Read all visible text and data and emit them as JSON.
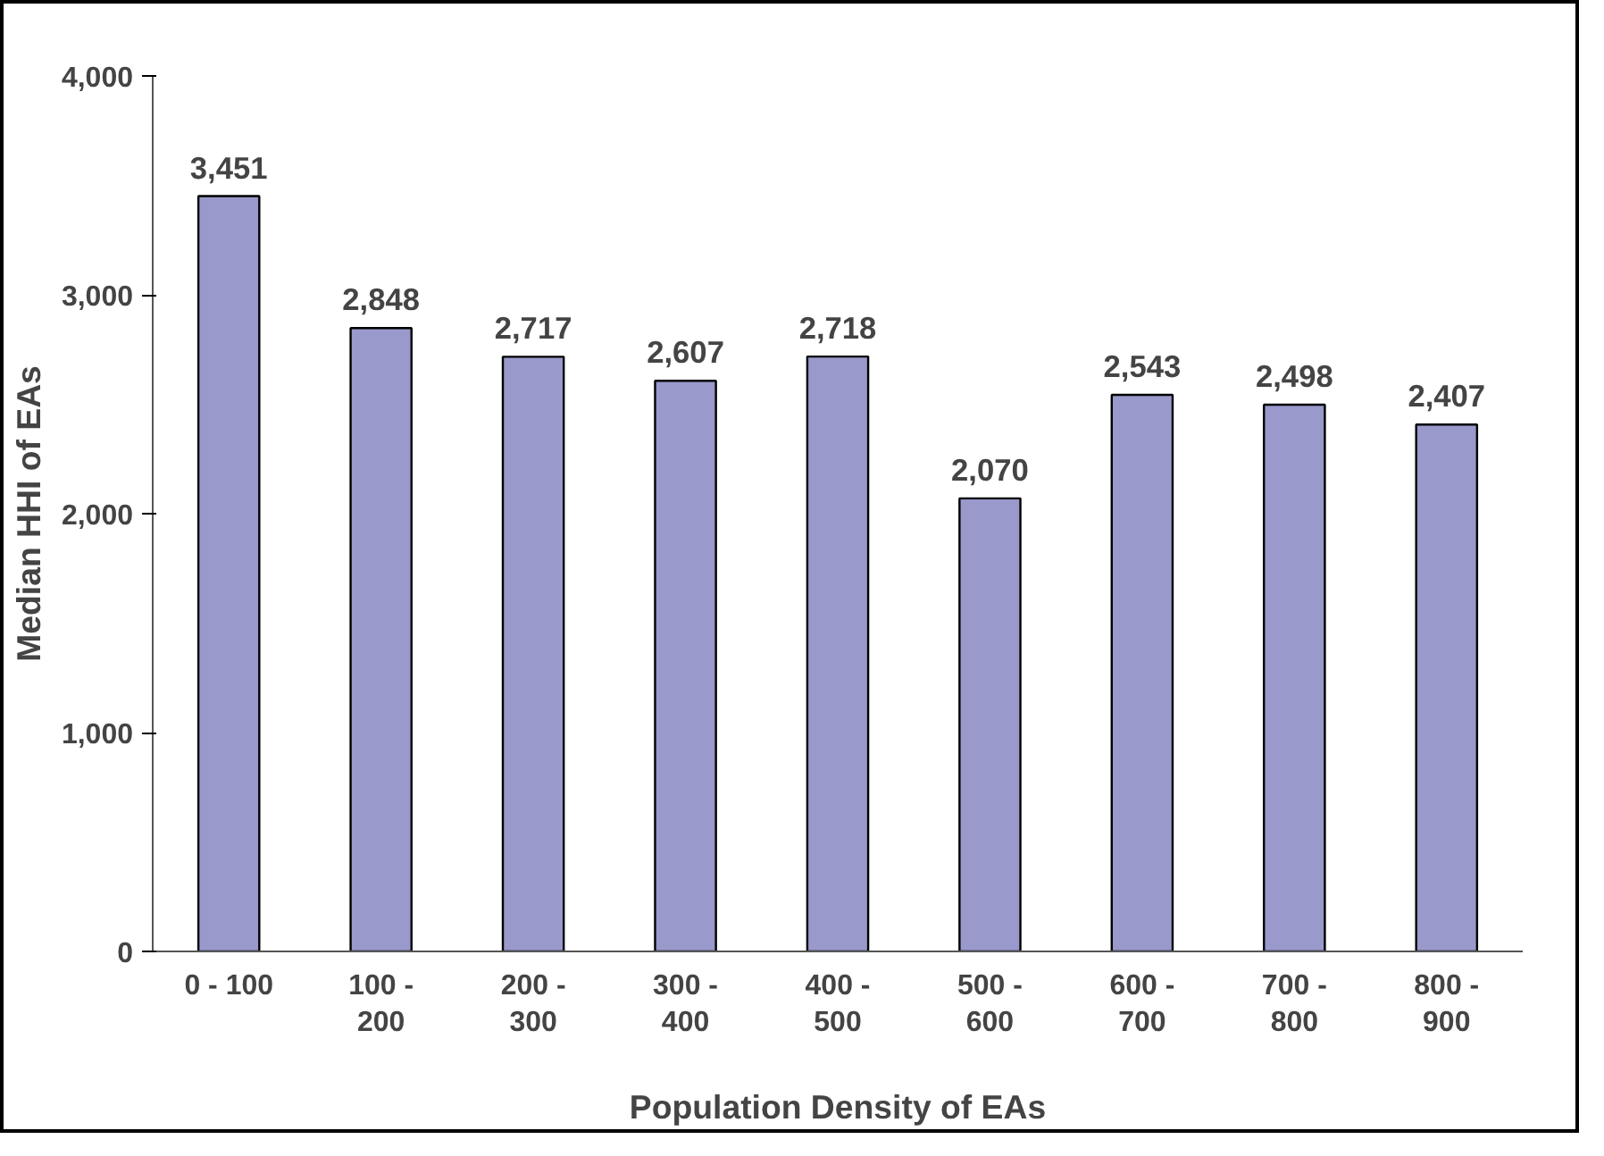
{
  "chart_data": {
    "type": "bar",
    "xlabel": "Population Density of EAs",
    "ylabel": "Median HHI of EAs",
    "categories": [
      "0 - 100",
      "100 - 200",
      "200 - 300",
      "300 - 400",
      "400 - 500",
      "500 - 600",
      "600 - 700",
      "700 - 800",
      "800 - 900"
    ],
    "values": [
      3451,
      2848,
      2717,
      2607,
      2718,
      2070,
      2543,
      2498,
      2407
    ],
    "color": "#9999cc",
    "ylim": [
      0,
      4000
    ],
    "yticks": [
      {
        "value": 0,
        "label": "0"
      },
      {
        "value": 1000,
        "label": "1,000"
      },
      {
        "value": 2000,
        "label": "2,000"
      },
      {
        "value": 3000,
        "label": "3,000"
      },
      {
        "value": 4000,
        "label": "4,000"
      }
    ],
    "value_labels": [
      "3,451",
      "2,848",
      "2,717",
      "2,607",
      "2,718",
      "2,070",
      "2,543",
      "2,498",
      "2,407"
    ],
    "grid": false
  }
}
